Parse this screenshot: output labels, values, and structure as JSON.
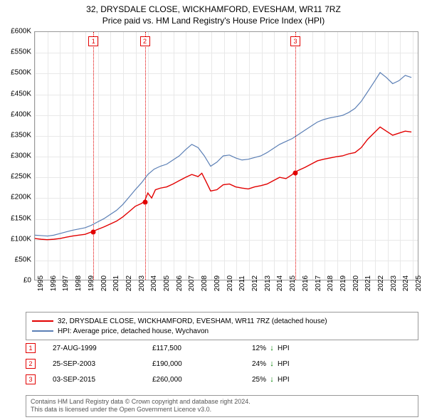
{
  "header": {
    "title": "32, DRYSDALE CLOSE, WICKHAMFORD, EVESHAM, WR11 7RZ",
    "subtitle": "Price paid vs. HM Land Registry's House Price Index (HPI)"
  },
  "chart": {
    "type": "line",
    "background_color": "#ffffff",
    "grid_color": "#e8e8e8",
    "border_color": "#999999",
    "ylim": [
      0,
      600000
    ],
    "ytick_step": 50000,
    "ytick_labels": [
      "£0",
      "£50K",
      "£100K",
      "£150K",
      "£200K",
      "£250K",
      "£300K",
      "£350K",
      "£400K",
      "£450K",
      "£500K",
      "£550K",
      "£600K"
    ],
    "xlim": [
      1995,
      2025.5
    ],
    "xticks": [
      1995,
      1996,
      1997,
      1998,
      1999,
      2000,
      2001,
      2002,
      2003,
      2004,
      2005,
      2006,
      2007,
      2008,
      2009,
      2010,
      2011,
      2012,
      2013,
      2014,
      2015,
      2016,
      2017,
      2018,
      2019,
      2020,
      2021,
      2022,
      2023,
      2024,
      2025
    ],
    "series": [
      {
        "name": "property",
        "label": "32, DRYSDALE CLOSE, WICKHAMFORD, EVESHAM, WR11 7RZ (detached house)",
        "color": "#e20000",
        "line_width": 1.4,
        "data": [
          [
            1995.0,
            100000
          ],
          [
            1995.5,
            98000
          ],
          [
            1996.0,
            97000
          ],
          [
            1996.5,
            98000
          ],
          [
            1997.0,
            100000
          ],
          [
            1997.5,
            103000
          ],
          [
            1998.0,
            106000
          ],
          [
            1998.5,
            108000
          ],
          [
            1999.0,
            110000
          ],
          [
            1999.65,
            117500
          ],
          [
            2000.0,
            122000
          ],
          [
            2000.5,
            128000
          ],
          [
            2001.0,
            135000
          ],
          [
            2001.5,
            142000
          ],
          [
            2002.0,
            152000
          ],
          [
            2002.5,
            165000
          ],
          [
            2003.0,
            178000
          ],
          [
            2003.5,
            185000
          ],
          [
            2003.73,
            190000
          ],
          [
            2004.0,
            210000
          ],
          [
            2004.3,
            198000
          ],
          [
            2004.6,
            218000
          ],
          [
            2005.0,
            222000
          ],
          [
            2005.5,
            225000
          ],
          [
            2006.0,
            232000
          ],
          [
            2006.5,
            240000
          ],
          [
            2007.0,
            248000
          ],
          [
            2007.5,
            255000
          ],
          [
            2008.0,
            250000
          ],
          [
            2008.3,
            258000
          ],
          [
            2008.6,
            240000
          ],
          [
            2009.0,
            215000
          ],
          [
            2009.5,
            218000
          ],
          [
            2010.0,
            230000
          ],
          [
            2010.5,
            232000
          ],
          [
            2011.0,
            225000
          ],
          [
            2011.5,
            222000
          ],
          [
            2012.0,
            220000
          ],
          [
            2012.5,
            225000
          ],
          [
            2013.0,
            228000
          ],
          [
            2013.5,
            232000
          ],
          [
            2014.0,
            240000
          ],
          [
            2014.5,
            248000
          ],
          [
            2015.0,
            245000
          ],
          [
            2015.5,
            255000
          ],
          [
            2015.67,
            260000
          ],
          [
            2016.0,
            265000
          ],
          [
            2016.5,
            272000
          ],
          [
            2017.0,
            280000
          ],
          [
            2017.5,
            288000
          ],
          [
            2018.0,
            292000
          ],
          [
            2018.5,
            295000
          ],
          [
            2019.0,
            298000
          ],
          [
            2019.5,
            300000
          ],
          [
            2020.0,
            305000
          ],
          [
            2020.5,
            308000
          ],
          [
            2021.0,
            320000
          ],
          [
            2021.5,
            340000
          ],
          [
            2022.0,
            355000
          ],
          [
            2022.5,
            370000
          ],
          [
            2023.0,
            360000
          ],
          [
            2023.5,
            350000
          ],
          [
            2024.0,
            355000
          ],
          [
            2024.5,
            360000
          ],
          [
            2025.0,
            358000
          ]
        ]
      },
      {
        "name": "hpi",
        "label": "HPI: Average price, detached house, Wychavon",
        "color": "#5b7fb5",
        "line_width": 1.2,
        "data": [
          [
            1995.0,
            108000
          ],
          [
            1995.5,
            107000
          ],
          [
            1996.0,
            106000
          ],
          [
            1996.5,
            108000
          ],
          [
            1997.0,
            112000
          ],
          [
            1997.5,
            116000
          ],
          [
            1998.0,
            120000
          ],
          [
            1998.5,
            123000
          ],
          [
            1999.0,
            126000
          ],
          [
            1999.5,
            132000
          ],
          [
            2000.0,
            140000
          ],
          [
            2000.5,
            148000
          ],
          [
            2001.0,
            158000
          ],
          [
            2001.5,
            168000
          ],
          [
            2002.0,
            182000
          ],
          [
            2002.5,
            200000
          ],
          [
            2003.0,
            218000
          ],
          [
            2003.5,
            235000
          ],
          [
            2004.0,
            255000
          ],
          [
            2004.5,
            268000
          ],
          [
            2005.0,
            275000
          ],
          [
            2005.5,
            280000
          ],
          [
            2006.0,
            290000
          ],
          [
            2006.5,
            300000
          ],
          [
            2007.0,
            315000
          ],
          [
            2007.5,
            328000
          ],
          [
            2008.0,
            320000
          ],
          [
            2008.5,
            300000
          ],
          [
            2009.0,
            275000
          ],
          [
            2009.5,
            285000
          ],
          [
            2010.0,
            300000
          ],
          [
            2010.5,
            302000
          ],
          [
            2011.0,
            295000
          ],
          [
            2011.5,
            290000
          ],
          [
            2012.0,
            292000
          ],
          [
            2012.5,
            296000
          ],
          [
            2013.0,
            300000
          ],
          [
            2013.5,
            308000
          ],
          [
            2014.0,
            318000
          ],
          [
            2014.5,
            328000
          ],
          [
            2015.0,
            335000
          ],
          [
            2015.5,
            342000
          ],
          [
            2016.0,
            352000
          ],
          [
            2016.5,
            362000
          ],
          [
            2017.0,
            372000
          ],
          [
            2017.5,
            382000
          ],
          [
            2018.0,
            388000
          ],
          [
            2018.5,
            392000
          ],
          [
            2019.0,
            395000
          ],
          [
            2019.5,
            398000
          ],
          [
            2020.0,
            405000
          ],
          [
            2020.5,
            415000
          ],
          [
            2021.0,
            432000
          ],
          [
            2021.5,
            455000
          ],
          [
            2022.0,
            478000
          ],
          [
            2022.5,
            502000
          ],
          [
            2023.0,
            490000
          ],
          [
            2023.5,
            475000
          ],
          [
            2024.0,
            482000
          ],
          [
            2024.5,
            495000
          ],
          [
            2025.0,
            490000
          ]
        ]
      }
    ],
    "markers": [
      {
        "id": "1",
        "x": 1999.65,
        "y": 117500,
        "date": "27-AUG-1999",
        "price": "£117,500",
        "pct": "12%",
        "dir": "down",
        "dir_label": "HPI"
      },
      {
        "id": "2",
        "x": 2003.73,
        "y": 190000,
        "date": "25-SEP-2003",
        "price": "£190,000",
        "pct": "24%",
        "dir": "down",
        "dir_label": "HPI"
      },
      {
        "id": "3",
        "x": 2015.67,
        "y": 260000,
        "date": "03-SEP-2015",
        "price": "£260,000",
        "pct": "25%",
        "dir": "down",
        "dir_label": "HPI"
      }
    ],
    "marker_color": "#e20000",
    "label_fontsize": 10
  },
  "legend": {
    "border_color": "#999999",
    "fontsize": 10
  },
  "footer": {
    "line1": "Contains HM Land Registry data © Crown copyright and database right 2024.",
    "line2": "This data is licensed under the Open Government Licence v3.0."
  }
}
